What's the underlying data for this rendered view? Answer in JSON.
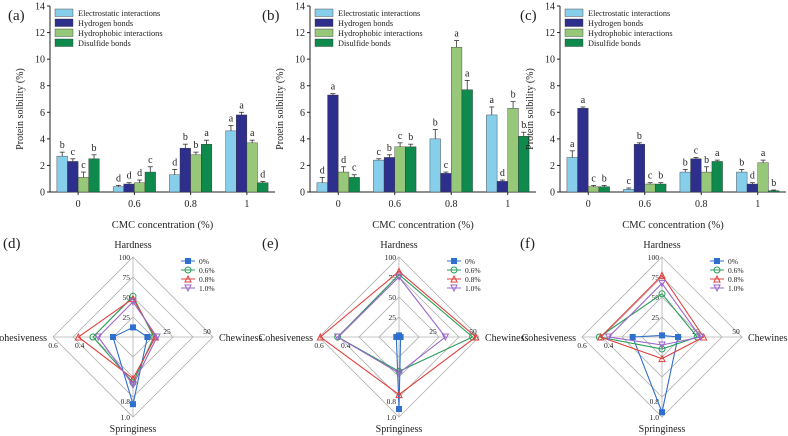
{
  "colors": {
    "electrostatic": "#87ceeb",
    "hydrogen": "#2e2f8c",
    "hydrophobic": "#97c87a",
    "disulfide": "#0e8a4d",
    "radar_series": [
      "#2f6fce",
      "#2a9d5a",
      "#e0413d",
      "#9966cc"
    ],
    "axis": "#222222",
    "grid": "#b0b0b0"
  },
  "legend_series": [
    "Electrostatic interactions",
    "Hydrogen bonds",
    "Hydrophobic interactions",
    "Disulfide bonds"
  ],
  "chart_data": [
    {
      "type": "bar",
      "panel_label": "(a)",
      "categories": [
        "0",
        "0.6",
        "0.8",
        "1"
      ],
      "ylabel": "Protein solbility (%)",
      "xlabel": "CMC concentration (%)",
      "ylim": [
        0,
        14
      ],
      "yticks": [
        "0",
        "2",
        "4",
        "6",
        "8",
        "10",
        "12",
        "14"
      ],
      "legend": "top-left",
      "series": [
        {
          "name": "Electrostatic interactions",
          "values": [
            2.7,
            0.4,
            1.3,
            4.6
          ],
          "errors": [
            0.3,
            0.1,
            0.4,
            0.4
          ],
          "letters": [
            "b",
            "d",
            "d",
            "a"
          ]
        },
        {
          "name": "Hydrogen bonds",
          "values": [
            2.3,
            0.6,
            3.3,
            5.8
          ],
          "errors": [
            0.2,
            0.1,
            0.3,
            0.2
          ],
          "letters": [
            "c",
            "d",
            "b",
            "a"
          ]
        },
        {
          "name": "Hydrophobic interactions",
          "values": [
            1.1,
            0.7,
            2.8,
            3.7
          ],
          "errors": [
            0.4,
            0.2,
            0.2,
            0.2
          ],
          "letters": [
            "c",
            "d",
            "b",
            "a"
          ]
        },
        {
          "name": "Disulfide bonds",
          "values": [
            2.5,
            1.5,
            3.6,
            0.7
          ],
          "errors": [
            0.3,
            0.4,
            0.3,
            0.1
          ],
          "letters": [
            "b",
            "c",
            "a",
            "d"
          ]
        }
      ]
    },
    {
      "type": "bar",
      "panel_label": "(b)",
      "categories": [
        "0",
        "0.6",
        "0.8",
        "1"
      ],
      "ylabel": "Protein solbility (%)",
      "xlabel": "CMC concentration (%)",
      "ylim": [
        0,
        14
      ],
      "yticks": [
        "0",
        "2",
        "4",
        "6",
        "8",
        "10",
        "12",
        "14"
      ],
      "legend": "top-left",
      "series": [
        {
          "name": "Electrostatic interactions",
          "values": [
            0.7,
            2.4,
            4.0,
            5.8
          ],
          "errors": [
            0.4,
            0.1,
            0.7,
            0.6
          ],
          "letters": [
            "d",
            "c",
            "b",
            "a"
          ]
        },
        {
          "name": "Hydrogen bonds",
          "values": [
            7.3,
            2.6,
            1.4,
            0.8
          ],
          "errors": [
            0.1,
            0.2,
            0.1,
            0.1
          ],
          "letters": [
            "a",
            "b",
            "c",
            "d"
          ]
        },
        {
          "name": "Hydrophobic interactions",
          "values": [
            1.5,
            3.4,
            10.9,
            6.3
          ],
          "errors": [
            0.4,
            0.3,
            0.5,
            0.5
          ],
          "letters": [
            "d",
            "c",
            "a",
            "b"
          ]
        },
        {
          "name": "Disulfide bonds",
          "values": [
            1.1,
            3.4,
            7.7,
            4.2
          ],
          "errors": [
            0.2,
            0.2,
            0.7,
            0.3
          ],
          "letters": [
            "c",
            "b",
            "a",
            "b"
          ]
        }
      ]
    },
    {
      "type": "bar",
      "panel_label": "(c)",
      "categories": [
        "0",
        "0.6",
        "0.8",
        "1"
      ],
      "ylabel": "Protein solbility (%)",
      "xlabel": "CMC concentration (%)",
      "ylim": [
        0,
        14
      ],
      "yticks": [
        "0",
        "2",
        "4",
        "6",
        "8",
        "10",
        "12",
        "14"
      ],
      "legend": "top-left",
      "series": [
        {
          "name": "Electrostatic interactions",
          "values": [
            2.6,
            0.2,
            1.5,
            1.5
          ],
          "errors": [
            0.5,
            0.1,
            0.2,
            0.2
          ],
          "letters": [
            "a",
            "c",
            "b",
            "b"
          ]
        },
        {
          "name": "Hydrogen bonds",
          "values": [
            6.3,
            3.6,
            2.5,
            0.6
          ],
          "errors": [
            0.1,
            0.1,
            0.1,
            0.1
          ],
          "letters": [
            "a",
            "b",
            "c",
            "d"
          ]
        },
        {
          "name": "Hydrophobic interactions",
          "values": [
            0.4,
            0.6,
            1.5,
            2.2
          ],
          "errors": [
            0.1,
            0.1,
            0.4,
            0.2
          ],
          "letters": [
            "c",
            "c",
            "b",
            "a"
          ]
        },
        {
          "name": "Disulfide bonds",
          "values": [
            0.4,
            0.6,
            2.3,
            0.1
          ],
          "errors": [
            0.1,
            0.1,
            0.1,
            0.05
          ],
          "letters": [
            "b",
            "b",
            "a",
            "b"
          ]
        }
      ]
    },
    {
      "type": "radar",
      "panel_label": "(d)",
      "axes": [
        "Hardness",
        "Chewiness",
        "Springiness",
        "Cohesiveness"
      ],
      "axis_max": [
        100,
        50,
        1.0,
        0.6
      ],
      "tick_labels": {
        "Hardness": [
          "25",
          "50",
          "75",
          "100"
        ],
        "Chewiness": [
          "25",
          "50"
        ],
        "Springiness": [
          "0.8",
          "1.0"
        ],
        "Cohesiveness": [
          "0.4",
          "0.6"
        ]
      },
      "series": [
        {
          "name": "0%",
          "values": [
            12,
            9,
            0.84,
            0.15
          ]
        },
        {
          "name": "0.6%",
          "values": [
            51,
            13,
            0.57,
            0.3
          ]
        },
        {
          "name": "0.8%",
          "values": [
            48,
            14,
            0.52,
            0.41
          ]
        },
        {
          "name": "1.0%",
          "values": [
            44,
            15,
            0.6,
            0.26
          ]
        }
      ]
    },
    {
      "type": "radar",
      "panel_label": "(e)",
      "axes": [
        "Hardness",
        "Chewiness",
        "Springiness",
        "Cohesiveness"
      ],
      "axis_max": [
        100,
        50,
        1.0,
        0.6
      ],
      "tick_labels": {
        "Hardness": [
          "25",
          "50",
          "75",
          "100"
        ],
        "Chewiness": [
          "25",
          "50"
        ],
        "Springiness": [
          "0.8",
          "1.0"
        ],
        "Cohesiveness": [
          "0.4",
          "0.6"
        ]
      },
      "series": [
        {
          "name": "0%",
          "values": [
            2,
            1,
            0.9,
            0.02
          ]
        },
        {
          "name": "0.6%",
          "values": [
            78,
            46,
            0.43,
            0.46
          ]
        },
        {
          "name": "0.8%",
          "values": [
            82,
            48,
            0.72,
            0.59
          ]
        },
        {
          "name": "1.0%",
          "values": [
            75,
            29,
            0.45,
            0.46
          ]
        }
      ]
    },
    {
      "type": "radar",
      "panel_label": "(f)",
      "axes": [
        "Hardness",
        "Chewiness",
        "Springiness",
        "Cohesiveness"
      ],
      "axis_max": [
        100,
        50,
        1.0,
        0.6
      ],
      "tick_labels": {
        "Hardness": [
          "25",
          "50",
          "75",
          "100"
        ],
        "Chewiness": [
          "25",
          "50"
        ],
        "Springiness": [
          "0.8",
          "1.0"
        ],
        "Cohesiveness": [
          "0.4",
          "0.6"
        ]
      },
      "series": [
        {
          "name": "0%",
          "values": [
            2,
            10,
            0.94,
            0.22
          ]
        },
        {
          "name": "0.6%",
          "values": [
            54,
            22,
            0.15,
            0.47
          ]
        },
        {
          "name": "0.8%",
          "values": [
            77,
            26,
            0.27,
            0.46
          ]
        },
        {
          "name": "1.0%",
          "values": [
            67,
            24,
            0.1,
            0.4
          ]
        }
      ]
    }
  ]
}
